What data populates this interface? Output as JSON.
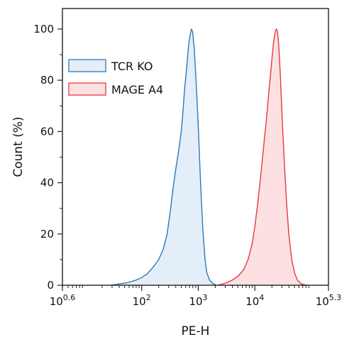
{
  "chart_data": {
    "type": "area",
    "title": "",
    "xlabel": "PE-H",
    "ylabel": "Count (%)",
    "x_scale": "log10",
    "xlim": [
      0.6,
      5.3
    ],
    "ylim": [
      0,
      108
    ],
    "grid": false,
    "legend_position": "upper-left",
    "x_ticks": [
      {
        "base": "10",
        "exp": "0.6",
        "value": 0.6
      },
      {
        "base": "10",
        "exp": "2",
        "value": 2
      },
      {
        "base": "10",
        "exp": "3",
        "value": 3
      },
      {
        "base": "10",
        "exp": "4",
        "value": 4
      },
      {
        "base": "10",
        "exp": "5.3",
        "value": 5.3
      }
    ],
    "y_ticks": [
      {
        "label": "0",
        "value": 0
      },
      {
        "label": "20",
        "value": 20
      },
      {
        "label": "40",
        "value": 40
      },
      {
        "label": "60",
        "value": 60
      },
      {
        "label": "80",
        "value": 80
      },
      {
        "label": "100",
        "value": 100
      }
    ],
    "series": [
      {
        "name": "TCR KO",
        "stroke": "#2b7bba",
        "fill": "#e3eef8",
        "x_log10": [
          1.45,
          1.6,
          1.75,
          1.9,
          2.0,
          2.1,
          2.2,
          2.3,
          2.38,
          2.45,
          2.5,
          2.55,
          2.6,
          2.65,
          2.7,
          2.73,
          2.76,
          2.8,
          2.83,
          2.86,
          2.88,
          2.9,
          2.93,
          2.96,
          3.0,
          3.04,
          3.08,
          3.12,
          3.15,
          3.2,
          3.25,
          3.32
        ],
        "y": [
          0,
          0.5,
          1,
          2,
          3,
          4.5,
          7,
          10,
          14,
          20,
          28,
          37,
          45,
          52,
          60,
          68,
          77,
          86,
          94,
          98,
          100,
          99,
          92,
          80,
          62,
          40,
          22,
          10,
          5,
          2,
          0.8,
          0
        ]
      },
      {
        "name": "MAGE A4",
        "stroke": "#e8383d",
        "fill": "#fde1e2",
        "x_log10": [
          3.35,
          3.5,
          3.6,
          3.7,
          3.8,
          3.88,
          3.95,
          4.0,
          4.05,
          4.1,
          4.15,
          4.2,
          4.25,
          4.3,
          4.33,
          4.36,
          4.38,
          4.4,
          4.42,
          4.45,
          4.48,
          4.52,
          4.56,
          4.6,
          4.65,
          4.7,
          4.75,
          4.82,
          4.92
        ],
        "y": [
          0,
          1,
          2,
          3.5,
          6,
          10,
          16,
          23,
          32,
          42,
          53,
          64,
          76,
          88,
          95,
          99,
          100,
          99,
          94,
          82,
          66,
          48,
          32,
          20,
          10,
          5,
          2,
          0.5,
          0
        ]
      }
    ]
  }
}
